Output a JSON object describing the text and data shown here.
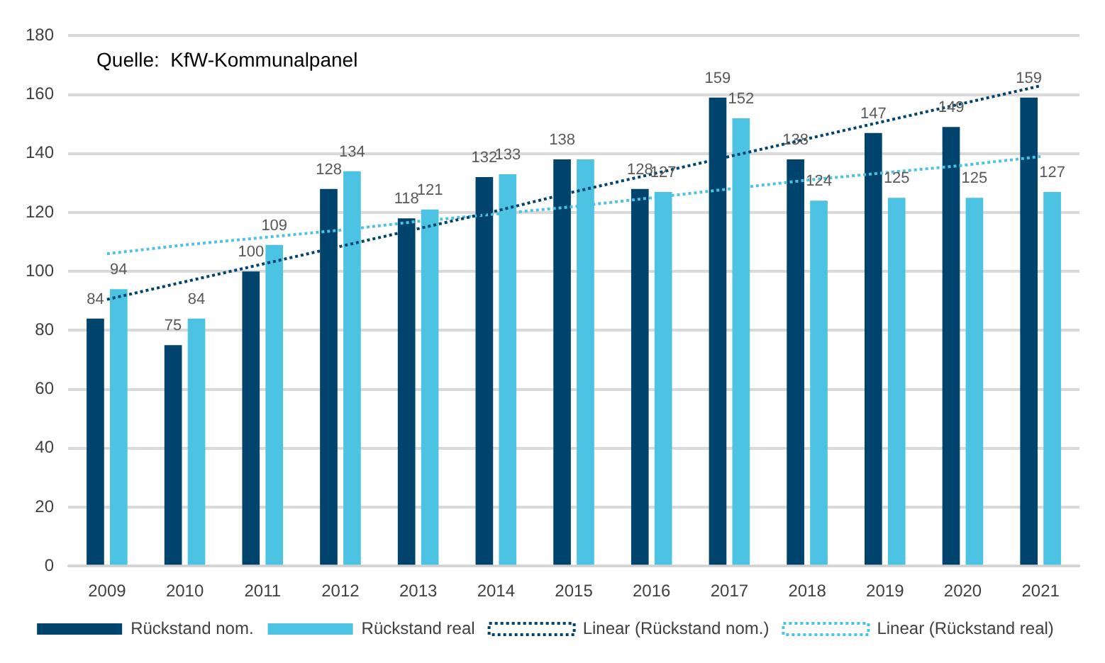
{
  "chart_data": {
    "type": "bar",
    "categories": [
      "2009",
      "2010",
      "2011",
      "2012",
      "2013",
      "2014",
      "2015",
      "2016",
      "2017",
      "2018",
      "2019",
      "2020",
      "2021"
    ],
    "series": [
      {
        "name": "Rückstand nom.",
        "color": "#00446e",
        "values": [
          84,
          75,
          100,
          128,
          118,
          132,
          138,
          128,
          159,
          138,
          147,
          149,
          159
        ],
        "value_labels": [
          "84",
          "75",
          "100",
          "128",
          "118",
          "132",
          "138",
          "128",
          "159",
          "138",
          "147",
          "149",
          "159"
        ]
      },
      {
        "name": "Rückstand real",
        "color": "#4cc3e3",
        "values": [
          94,
          84,
          109,
          134,
          121,
          133,
          138,
          127,
          152,
          124,
          125,
          125,
          127
        ],
        "value_labels": [
          "94",
          "84",
          "109",
          "134",
          "121",
          "133",
          null,
          "127",
          "152",
          "124",
          "125",
          "125",
          "127"
        ]
      },
      {
        "name": "Linear (Rückstand nom.)",
        "type": "line",
        "color": "#00446e",
        "line_style": "dotted",
        "values": [
          90.5,
          96.5,
          102.5,
          108.5,
          114.5,
          120.5,
          127,
          133,
          139,
          145,
          151,
          157,
          163
        ]
      },
      {
        "name": "Linear (Rückstand real)",
        "type": "line",
        "color": "#4cc3e3",
        "line_style": "dotted",
        "values": [
          106,
          109,
          111.5,
          114,
          117,
          119.5,
          122,
          125,
          128,
          131,
          133.5,
          136,
          139
        ]
      }
    ],
    "ylim": [
      0,
      180
    ],
    "yticks": [
      0,
      20,
      40,
      60,
      80,
      100,
      120,
      140,
      160,
      180
    ],
    "grid": "y",
    "legend": "bottom",
    "annotations": [
      "Quelle:  KfW-Kommunalpanel"
    ]
  }
}
